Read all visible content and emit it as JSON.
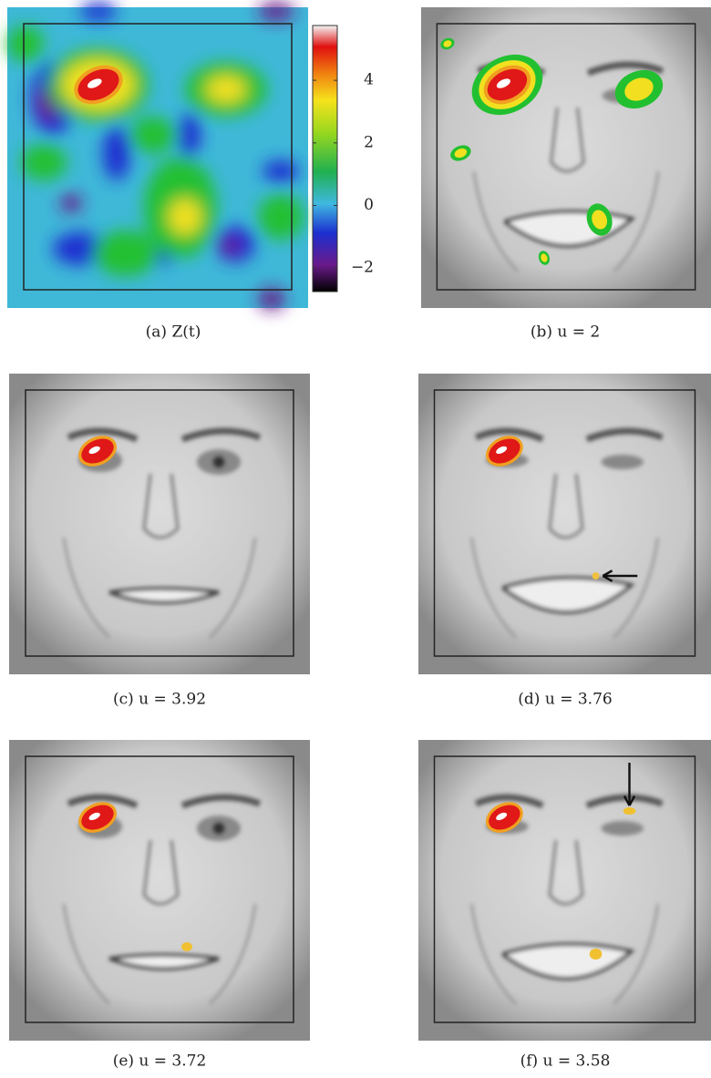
{
  "panels": [
    {
      "caption": "(a) Z(t)"
    },
    {
      "caption": "(b) u = 2"
    },
    {
      "caption": "(c) u = 3.92"
    },
    {
      "caption": "(d) u = 3.76"
    },
    {
      "caption": "(e) u = 3.72"
    },
    {
      "caption": "(f) u = 3.58"
    }
  ],
  "colorbar": {
    "lim": [
      -2.75,
      5.75
    ],
    "ticks": [
      4,
      2,
      0,
      {
        "value": -2,
        "label": "−2"
      }
    ]
  }
}
